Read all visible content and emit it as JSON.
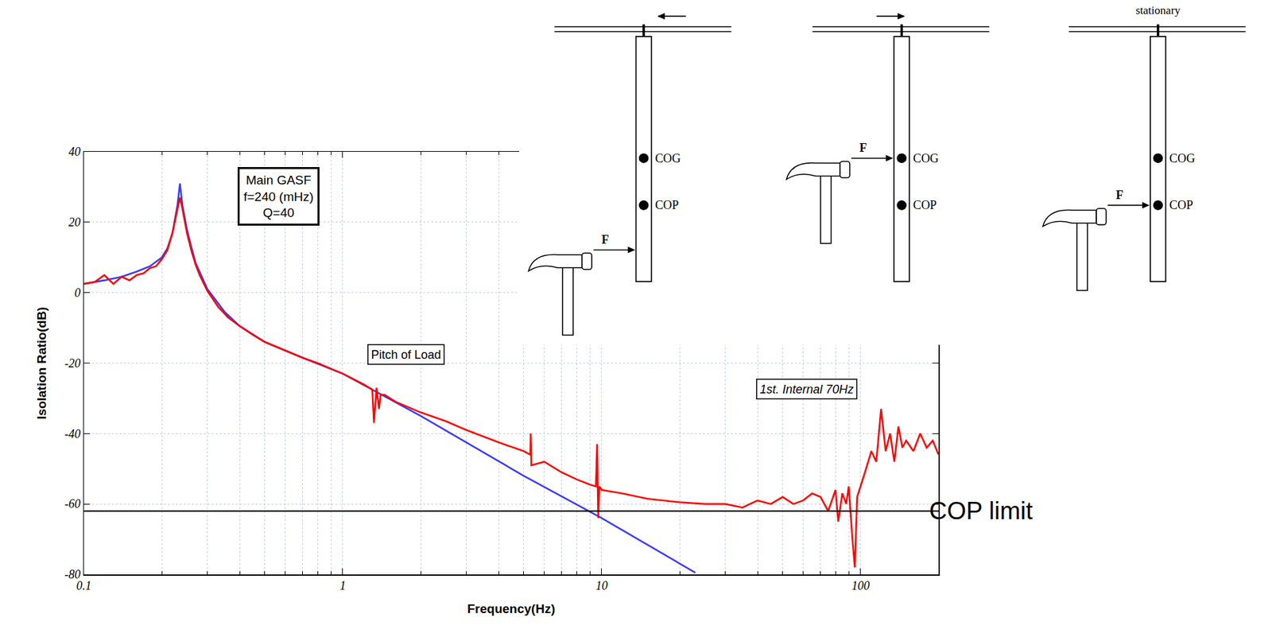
{
  "chart_data": {
    "type": "line",
    "x_label": "Frequency(Hz)",
    "y_label": "Isolation Ratio(dB)",
    "log": "x",
    "grid": true,
    "xlim": [
      0.1,
      200
    ],
    "xticks": [
      0.1,
      1,
      10,
      100
    ],
    "ylim": [
      -80,
      40
    ],
    "yticks": [
      -80,
      -60,
      -40,
      -20,
      0,
      20,
      40
    ],
    "series": [
      {
        "color": "#3b3bff",
        "x": [
          0.1,
          0.12,
          0.14,
          0.16,
          0.18,
          0.2,
          0.21,
          0.22,
          0.23,
          0.235,
          0.24,
          0.25,
          0.26,
          0.27,
          0.3,
          0.35,
          0.4,
          0.5,
          0.7,
          1,
          2,
          5,
          10,
          23
        ],
        "values": [
          2.5,
          3.5,
          4.5,
          6,
          7.5,
          10,
          12.5,
          17,
          25,
          31,
          25,
          18,
          13,
          8.5,
          1,
          -5.5,
          -9.5,
          -14,
          -18.5,
          -23,
          -35,
          -52,
          -64,
          -79.5
        ]
      },
      {
        "color": "#ff0000",
        "x": [
          0.1,
          0.11,
          0.12,
          0.13,
          0.14,
          0.15,
          0.16,
          0.17,
          0.18,
          0.19,
          0.2,
          0.21,
          0.22,
          0.23,
          0.235,
          0.24,
          0.25,
          0.26,
          0.27,
          0.28,
          0.3,
          0.33,
          0.36,
          0.4,
          0.45,
          0.5,
          0.6,
          0.7,
          0.8,
          1,
          1.2,
          1.3,
          1.32,
          1.35,
          1.38,
          1.4,
          1.45,
          1.6,
          2,
          2.5,
          3,
          4,
          5,
          5.3,
          5.32,
          5.35,
          6,
          7,
          8,
          9,
          9.5,
          9.6,
          9.7,
          9.8,
          10,
          12,
          15,
          20,
          25,
          30,
          35,
          40,
          45,
          50,
          55,
          60,
          65,
          70,
          75,
          80,
          82,
          85,
          88,
          90,
          93,
          95,
          97,
          100,
          105,
          110,
          115,
          120,
          125,
          130,
          135,
          140,
          145,
          150,
          160,
          170,
          180,
          190,
          200
        ],
        "values": [
          2.5,
          3,
          5,
          2.5,
          4.5,
          3.5,
          5,
          5.5,
          7,
          7.5,
          9.5,
          12,
          17,
          24,
          27,
          24,
          17,
          12,
          8,
          5,
          0.5,
          -4,
          -7,
          -9.5,
          -12,
          -14,
          -16.5,
          -18.5,
          -20,
          -23,
          -26,
          -27.5,
          -37,
          -27,
          -33,
          -29,
          -29,
          -31,
          -34,
          -36.5,
          -39,
          -42.5,
          -45,
          -46,
          -40,
          -49,
          -48,
          -51,
          -53,
          -54.5,
          -55,
          -43,
          -64,
          -55,
          -56,
          -57,
          -58.5,
          -59.5,
          -60,
          -60,
          -61,
          -59,
          -60,
          -58,
          -60,
          -59,
          -57,
          -58,
          -62,
          -56,
          -65,
          -57,
          -60,
          -55,
          -70,
          -78,
          -58,
          -55,
          -50,
          -45,
          -48,
          -33,
          -45,
          -40,
          -48,
          -38,
          -44,
          -42,
          -45,
          -40,
          -44,
          -42,
          -46
        ]
      }
    ],
    "reference_line": {
      "value": -62,
      "label": "COP limit",
      "color": "#000000"
    },
    "annotations": [
      [
        "Main GASF",
        "f=240 (mHz)",
        "Q=40"
      ],
      [
        "Pitch of Load"
      ],
      [
        "1st. Internal 70Hz"
      ]
    ]
  },
  "diagram": {
    "labels": {
      "cog": "COG",
      "cop": "COP",
      "force": "F"
    },
    "caption": "stationary"
  }
}
